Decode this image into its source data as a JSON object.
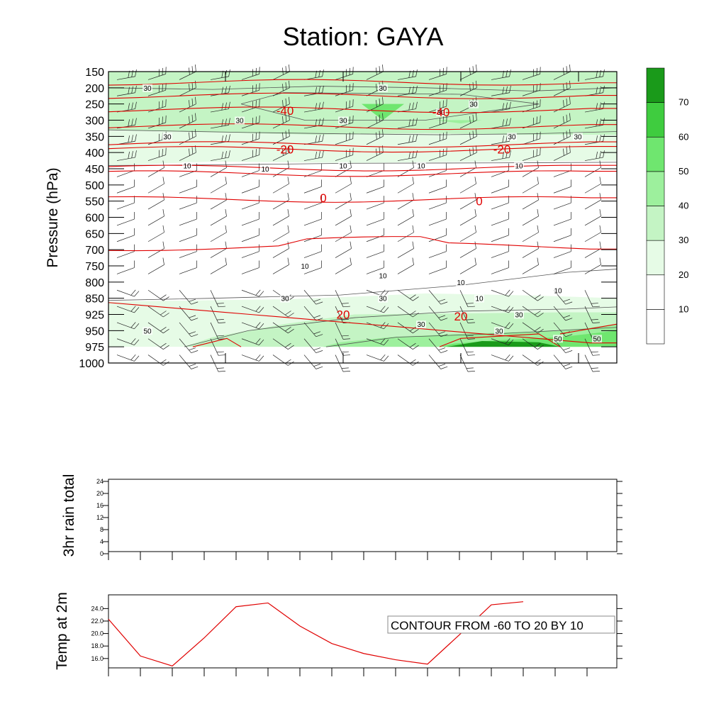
{
  "page": {
    "title": "Station: GAYA"
  },
  "chart_data": [
    {
      "type": "heatmap",
      "description_kind": "time-pressure cross section",
      "ylabel": "Pressure (hPa)",
      "pressure_levels": [
        150,
        200,
        250,
        300,
        350,
        400,
        450,
        500,
        550,
        600,
        650,
        700,
        750,
        800,
        850,
        925,
        950,
        975,
        1000
      ],
      "fill_levels": [
        10,
        20,
        30,
        40,
        50,
        60,
        70
      ],
      "fill_colors": [
        "#ffffff",
        "#ffffff",
        "#e6fbe6",
        "#c4f4c4",
        "#9df09d",
        "#6fe66f",
        "#3fcc3f",
        "#1a9a1a"
      ],
      "colorbar_labels": [
        "10",
        "20",
        "30",
        "40",
        "50",
        "60",
        "70"
      ],
      "speed_contour_labels": [
        {
          "text": "30",
          "p": 200
        },
        {
          "text": "30",
          "p": 200
        },
        {
          "text": "30",
          "p": 250
        },
        {
          "text": "30",
          "p": 300
        },
        {
          "text": "30",
          "p": 300
        },
        {
          "text": "30",
          "p": 275
        },
        {
          "text": "30",
          "p": 350
        },
        {
          "text": "30",
          "p": 350
        },
        {
          "text": "30",
          "p": 350
        },
        {
          "text": "10",
          "p": 450
        },
        {
          "text": "10",
          "p": 440
        },
        {
          "text": "10",
          "p": 440
        },
        {
          "text": "10",
          "p": 440
        },
        {
          "text": "10",
          "p": 440
        },
        {
          "text": "10",
          "p": 750
        },
        {
          "text": "10",
          "p": 780
        },
        {
          "text": "10",
          "p": 800
        },
        {
          "text": "10",
          "p": 825
        },
        {
          "text": "10",
          "p": 850
        },
        {
          "text": "30",
          "p": 850
        },
        {
          "text": "30",
          "p": 850
        },
        {
          "text": "30",
          "p": 925
        },
        {
          "text": "30",
          "p": 940
        },
        {
          "text": "30",
          "p": 950
        },
        {
          "text": "50",
          "p": 962
        },
        {
          "text": "50",
          "p": 962
        },
        {
          "text": "50",
          "p": 950
        }
      ],
      "temp_contour_labels": [
        {
          "text": "-40",
          "p": 270
        },
        {
          "text": "-40",
          "p": 275
        },
        {
          "text": "-20",
          "p": 390
        },
        {
          "text": "-20",
          "p": 390
        },
        {
          "text": "0",
          "p": 540
        },
        {
          "text": "0",
          "p": 550
        },
        {
          "text": "20",
          "p": 925
        },
        {
          "text": "20",
          "p": 928
        }
      ]
    },
    {
      "type": "line",
      "ylabel": "3hr rain total",
      "ylim": [
        0,
        24
      ],
      "yticks": [
        "24",
        "20",
        "16",
        "12",
        "8",
        "4",
        "0"
      ],
      "values": []
    },
    {
      "type": "line",
      "ylabel": "Temp at 2m",
      "yticks": [
        "24.0",
        "22.0",
        "20.0",
        "18.0",
        "16.0"
      ],
      "ylim": [
        14.5,
        26.2
      ],
      "series": [
        {
          "color": "#e00000",
          "values": [
            22.3,
            16.4,
            14.8,
            19.3,
            24.3,
            24.9,
            21.2,
            18.4,
            16.8,
            15.8,
            15.1,
            19.8,
            24.6,
            25.1
          ]
        }
      ],
      "annotation": "CONTOUR FROM -60 TO 20 BY 10"
    }
  ]
}
